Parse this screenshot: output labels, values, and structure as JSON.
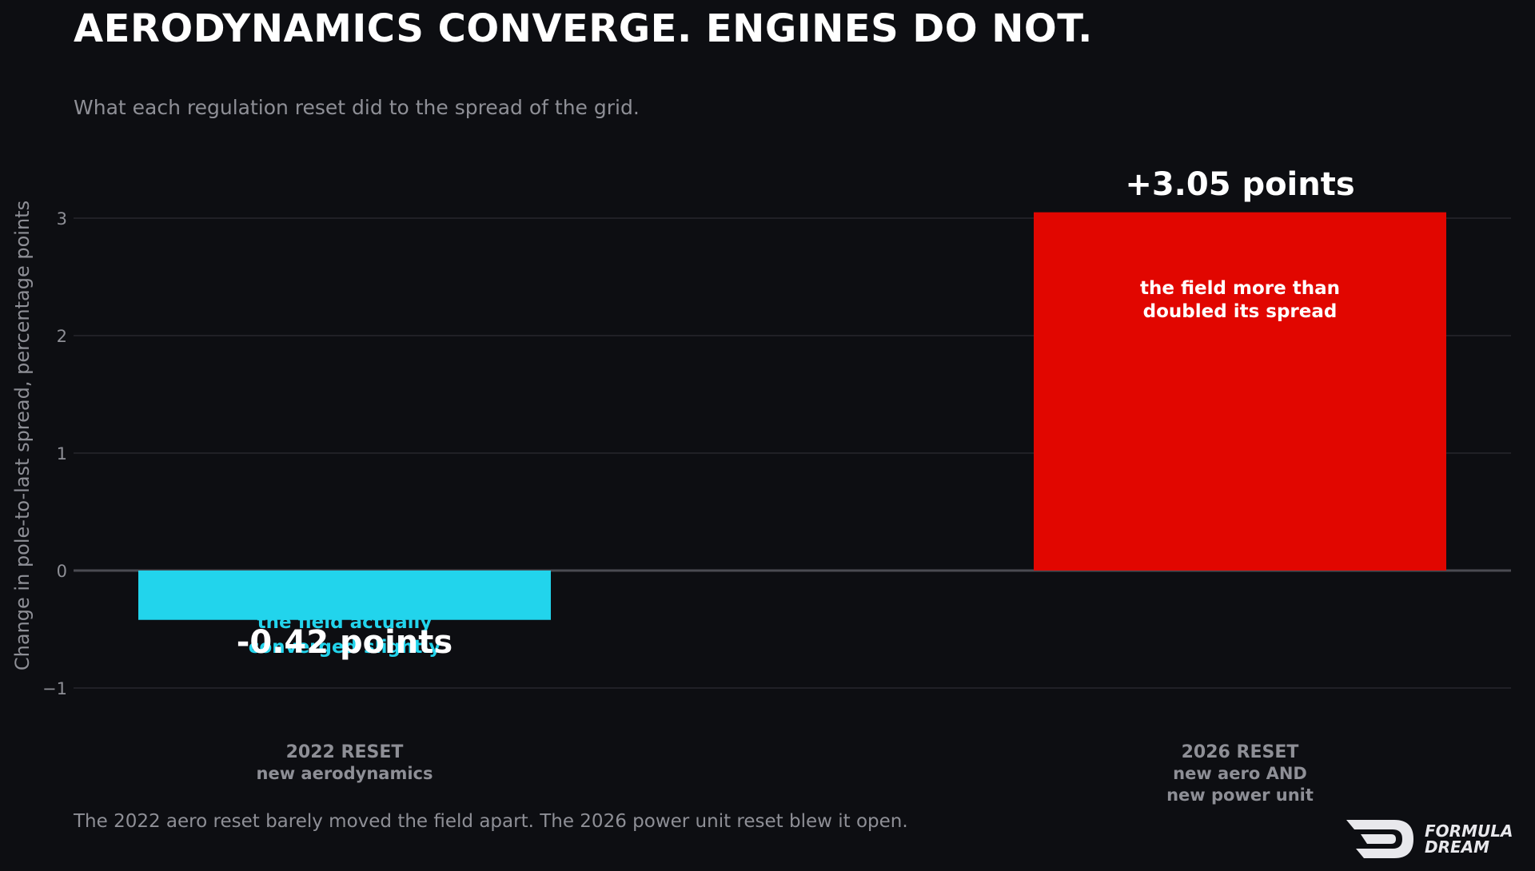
{
  "title": "AERODYNAMICS CONVERGE. ENGINES DO NOT.",
  "subtitle": "What each regulation reset did to the spread of the grid.",
  "footer": "The 2022 aero reset barely moved the field apart. The 2026 power unit reset blew it open.",
  "logo": {
    "name": "formula-dream-logo",
    "line1": "FORMULA",
    "line2": "DREAM"
  },
  "chart_data": {
    "type": "bar",
    "ylabel": "Change in pole-to-last spread, percentage points",
    "ylim": [
      -1.25,
      3.5
    ],
    "yticks": [
      -1,
      0,
      1,
      2,
      3
    ],
    "ytick_labels": [
      "−1",
      "0",
      "1",
      "2",
      "3"
    ],
    "grid": true,
    "categories": [
      {
        "title": "2022 RESET",
        "sub": [
          "new aerodynamics"
        ]
      },
      {
        "title": "2026 RESET",
        "sub": [
          "new aero AND",
          "new power unit"
        ]
      }
    ],
    "values": [
      -0.42,
      3.05
    ],
    "value_labels": [
      "-0.42 points",
      "+3.05 points"
    ],
    "annotations": [
      [
        "the field actually",
        "converged slightly"
      ],
      [
        "the field more than",
        "doubled its spread"
      ]
    ],
    "colors": [
      "#22d4ec",
      "#e10600"
    ],
    "annotation_colors": [
      "#22d4ec",
      "#ffffff"
    ]
  }
}
